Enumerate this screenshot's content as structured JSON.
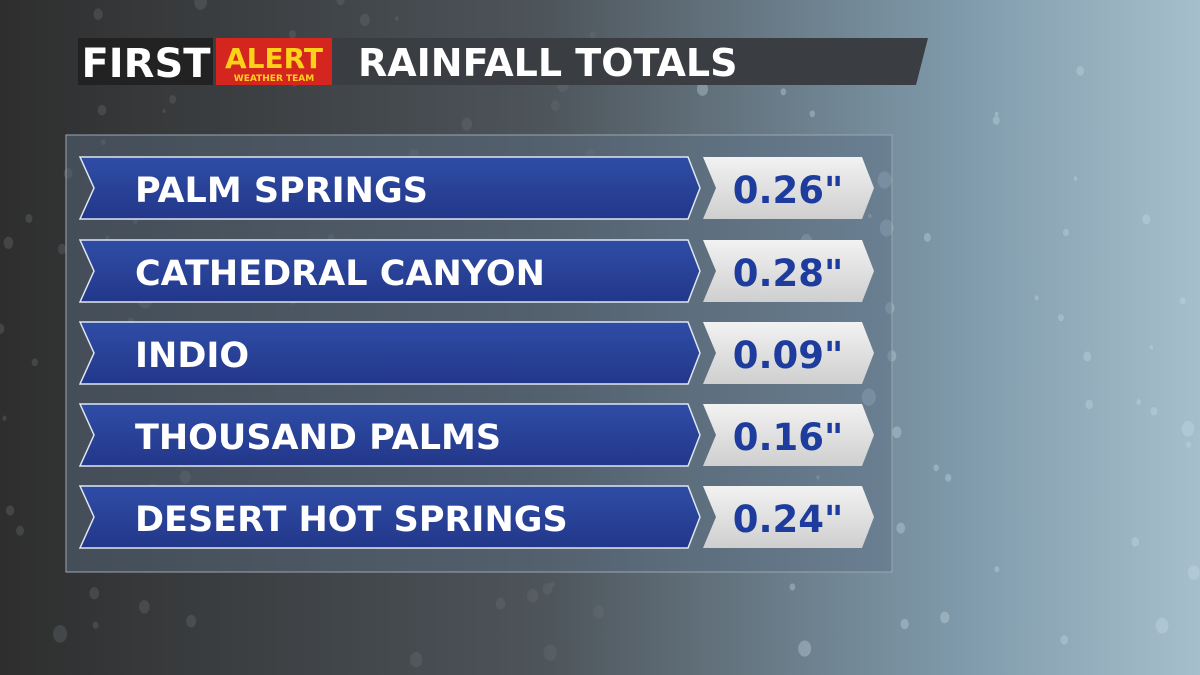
{
  "header": {
    "brand": "FIRST",
    "brand_highlight": "ALERT",
    "brand_sub": "WEATHER TEAM",
    "title": "RAINFALL TOTALS"
  },
  "table": {
    "rows": [
      [
        "PALM SPRINGS",
        "0.26\""
      ],
      [
        "CATHEDRAL CANYON",
        "0.28\""
      ],
      [
        "INDIO",
        "0.09\""
      ],
      [
        "THOUSAND PALMS",
        "0.16\""
      ],
      [
        "DESERT HOT SPRINGS",
        "0.24\""
      ]
    ]
  }
}
